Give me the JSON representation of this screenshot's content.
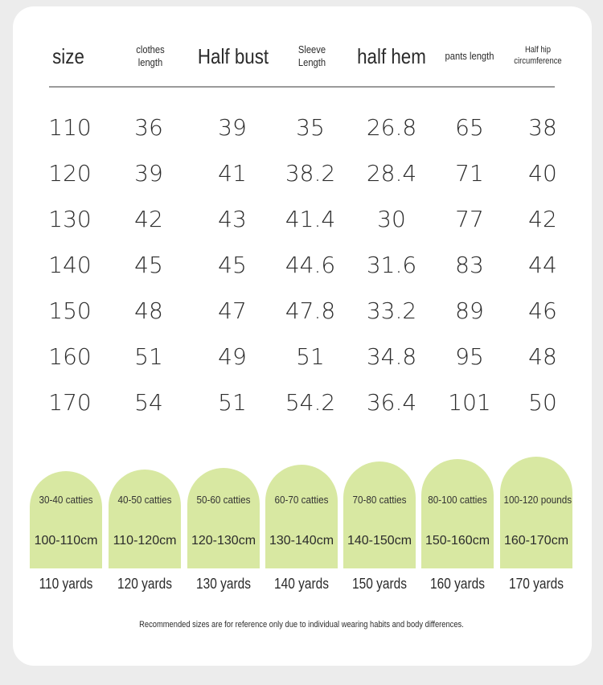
{
  "headers": [
    "size",
    "clothes\nlength",
    "Half bust",
    "Sleeve\nLength",
    "half hem",
    "pants length",
    "Half hip\ncircumference"
  ],
  "rows": [
    [
      "110",
      "36",
      "39",
      "35",
      "26.8",
      "65",
      "38"
    ],
    [
      "120",
      "39",
      "41",
      "38.2",
      "28.4",
      "71",
      "40"
    ],
    [
      "130",
      "42",
      "43",
      "41.4",
      "30",
      "77",
      "42"
    ],
    [
      "140",
      "45",
      "45",
      "44.6",
      "31.6",
      "83",
      "44"
    ],
    [
      "150",
      "48",
      "47",
      "47.8",
      "33.2",
      "89",
      "46"
    ],
    [
      "160",
      "51",
      "49",
      "51",
      "34.8",
      "95",
      "48"
    ],
    [
      "170",
      "54",
      "51",
      "54.2",
      "36.4",
      "101",
      "50"
    ]
  ],
  "guides": [
    {
      "weight": "30-40 catties",
      "height": "100-110cm",
      "label": "110 yards"
    },
    {
      "weight": "40-50 catties",
      "height": "110-120cm",
      "label": "120 yards"
    },
    {
      "weight": "50-60 catties",
      "height": "120-130cm",
      "label": "130 yards"
    },
    {
      "weight": "60-70 catties",
      "height": "130-140cm",
      "label": "140 yards"
    },
    {
      "weight": "70-80 catties",
      "height": "140-150cm",
      "label": "150 yards"
    },
    {
      "weight": "80-100 catties",
      "height": "150-160cm",
      "label": "160 yards"
    },
    {
      "weight": "100-120 pounds",
      "height": "160-170cm",
      "label": "170 yards"
    }
  ],
  "footnote": "Recommended sizes are for reference only due to individual wearing habits and body differences.",
  "colors": {
    "arch_fill": "#d8e8a2",
    "card_bg": "#ffffff",
    "page_bg": "#ececec",
    "rule": "#9a9a9a"
  }
}
